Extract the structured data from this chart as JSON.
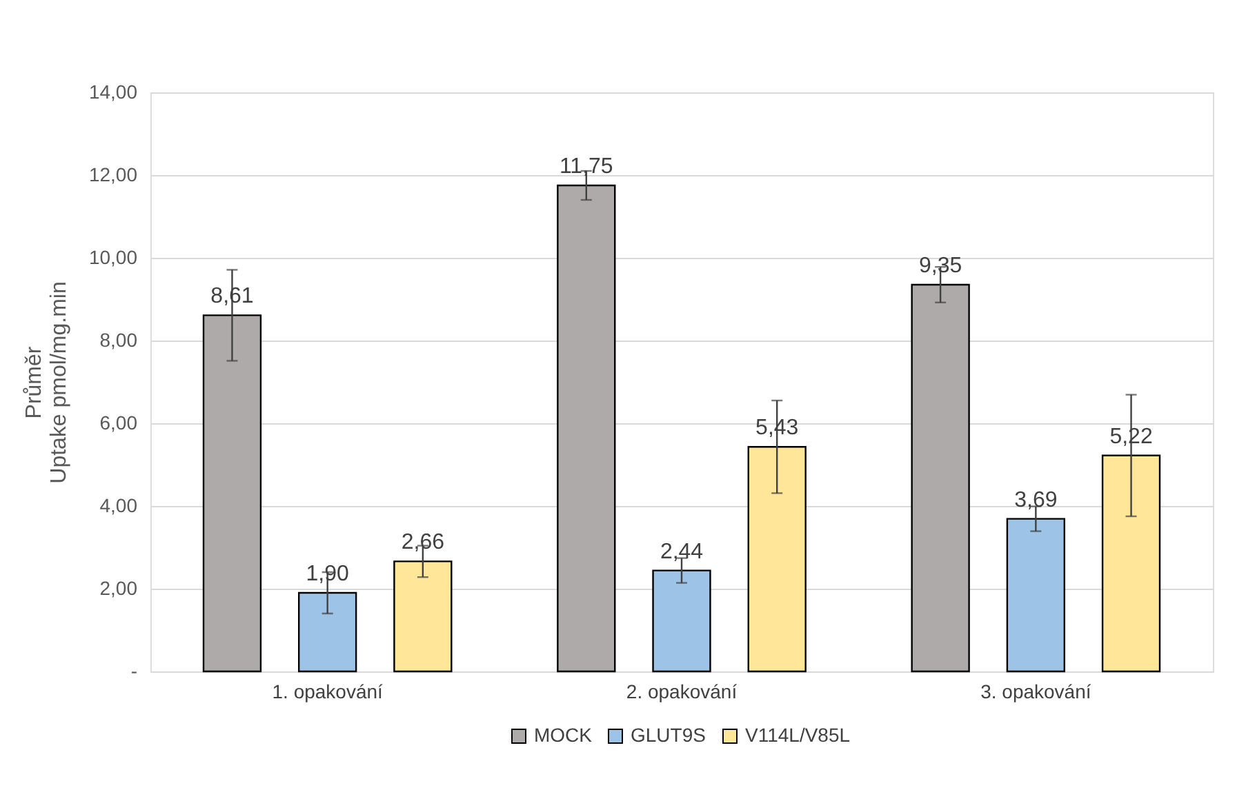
{
  "chart_data": {
    "type": "bar",
    "ylabel": "Průměr\nUptake pmol/mg.min",
    "categories": [
      "1. opakování",
      "2. opakování",
      "3. opakování"
    ],
    "series": [
      {
        "name": "MOCK",
        "color": "#aeaaaa",
        "values": [
          8.61,
          11.75,
          9.35
        ],
        "value_labels": [
          "8,61",
          "11,75",
          "9,35"
        ],
        "errors": [
          1.1,
          0.35,
          0.43
        ]
      },
      {
        "name": "GLUT9S",
        "color": "#9dc3e6",
        "values": [
          1.9,
          2.44,
          3.69
        ],
        "value_labels": [
          "1,90",
          "2,44",
          "3,69"
        ],
        "errors": [
          0.5,
          0.3,
          0.3
        ]
      },
      {
        "name": "V114L/V85L",
        "color": "#ffe699",
        "values": [
          2.66,
          5.43,
          5.22
        ],
        "value_labels": [
          "2,66",
          "5,43",
          "5,22"
        ],
        "errors": [
          0.38,
          1.12,
          1.47
        ]
      }
    ],
    "ylim": [
      0,
      14
    ],
    "yticks": [
      {
        "value": 0,
        "label": "-"
      },
      {
        "value": 2,
        "label": "2,00"
      },
      {
        "value": 4,
        "label": "4,00"
      },
      {
        "value": 6,
        "label": "6,00"
      },
      {
        "value": 8,
        "label": "8,00"
      },
      {
        "value": 10,
        "label": "10,00"
      },
      {
        "value": 12,
        "label": "12,00"
      },
      {
        "value": 14,
        "label": "14,00"
      }
    ],
    "grid": "y",
    "legend": "bottom"
  }
}
